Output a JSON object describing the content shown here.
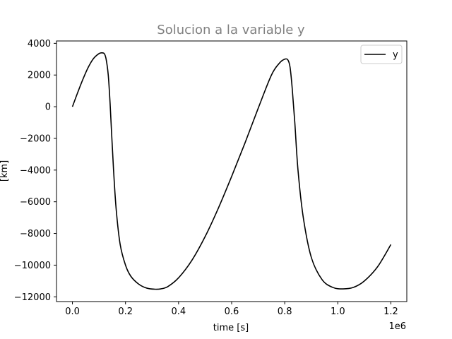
{
  "chart_data": {
    "type": "line",
    "title": "Solucion a la variable y",
    "xlabel": "time [s]",
    "ylabel": "[km]",
    "x_offset_label": "1e6",
    "xlim": [
      -60000,
      1260000
    ],
    "ylim": [
      -12300,
      4150
    ],
    "x_ticks": [
      0,
      200000,
      400000,
      600000,
      800000,
      1000000,
      1200000
    ],
    "x_tick_labels": [
      "0.0",
      "0.2",
      "0.4",
      "0.6",
      "0.8",
      "1.0",
      "1.2"
    ],
    "y_ticks": [
      4000,
      2000,
      0,
      -2000,
      -4000,
      -6000,
      -8000,
      -10000,
      -12000
    ],
    "y_tick_labels": [
      "4000",
      "2000",
      "0",
      "−2000",
      "−4000",
      "−6000",
      "−8000",
      "−10000",
      "−12000"
    ],
    "grid": false,
    "legend_position": "top-right",
    "series": [
      {
        "name": "y",
        "color": "#000000",
        "x": [
          0,
          20000,
          40000,
          60000,
          80000,
          100000,
          110000,
          120000,
          127000,
          135000,
          142000,
          148000,
          155000,
          165000,
          180000,
          200000,
          220000,
          250000,
          280000,
          310000,
          333000,
          360000,
          400000,
          450000,
          500000,
          550000,
          600000,
          650000,
          700000,
          750000,
          780000,
          800000,
          812000,
          820000,
          828000,
          838000,
          850000,
          870000,
          900000,
          940000,
          980000,
          1020000,
          1060000,
          1100000,
          1150000,
          1200000
        ],
        "y": [
          0,
          900,
          1750,
          2500,
          3050,
          3350,
          3400,
          3350,
          3000,
          2000,
          200,
          -1800,
          -4000,
          -6500,
          -8700,
          -10000,
          -10700,
          -11200,
          -11450,
          -11520,
          -11500,
          -11350,
          -10800,
          -9700,
          -8200,
          -6400,
          -4400,
          -2300,
          -100,
          2000,
          2750,
          3000,
          2950,
          2500,
          1200,
          -1000,
          -4000,
          -7000,
          -9500,
          -10900,
          -11400,
          -11500,
          -11400,
          -11000,
          -10100,
          -8700
        ]
      }
    ]
  }
}
